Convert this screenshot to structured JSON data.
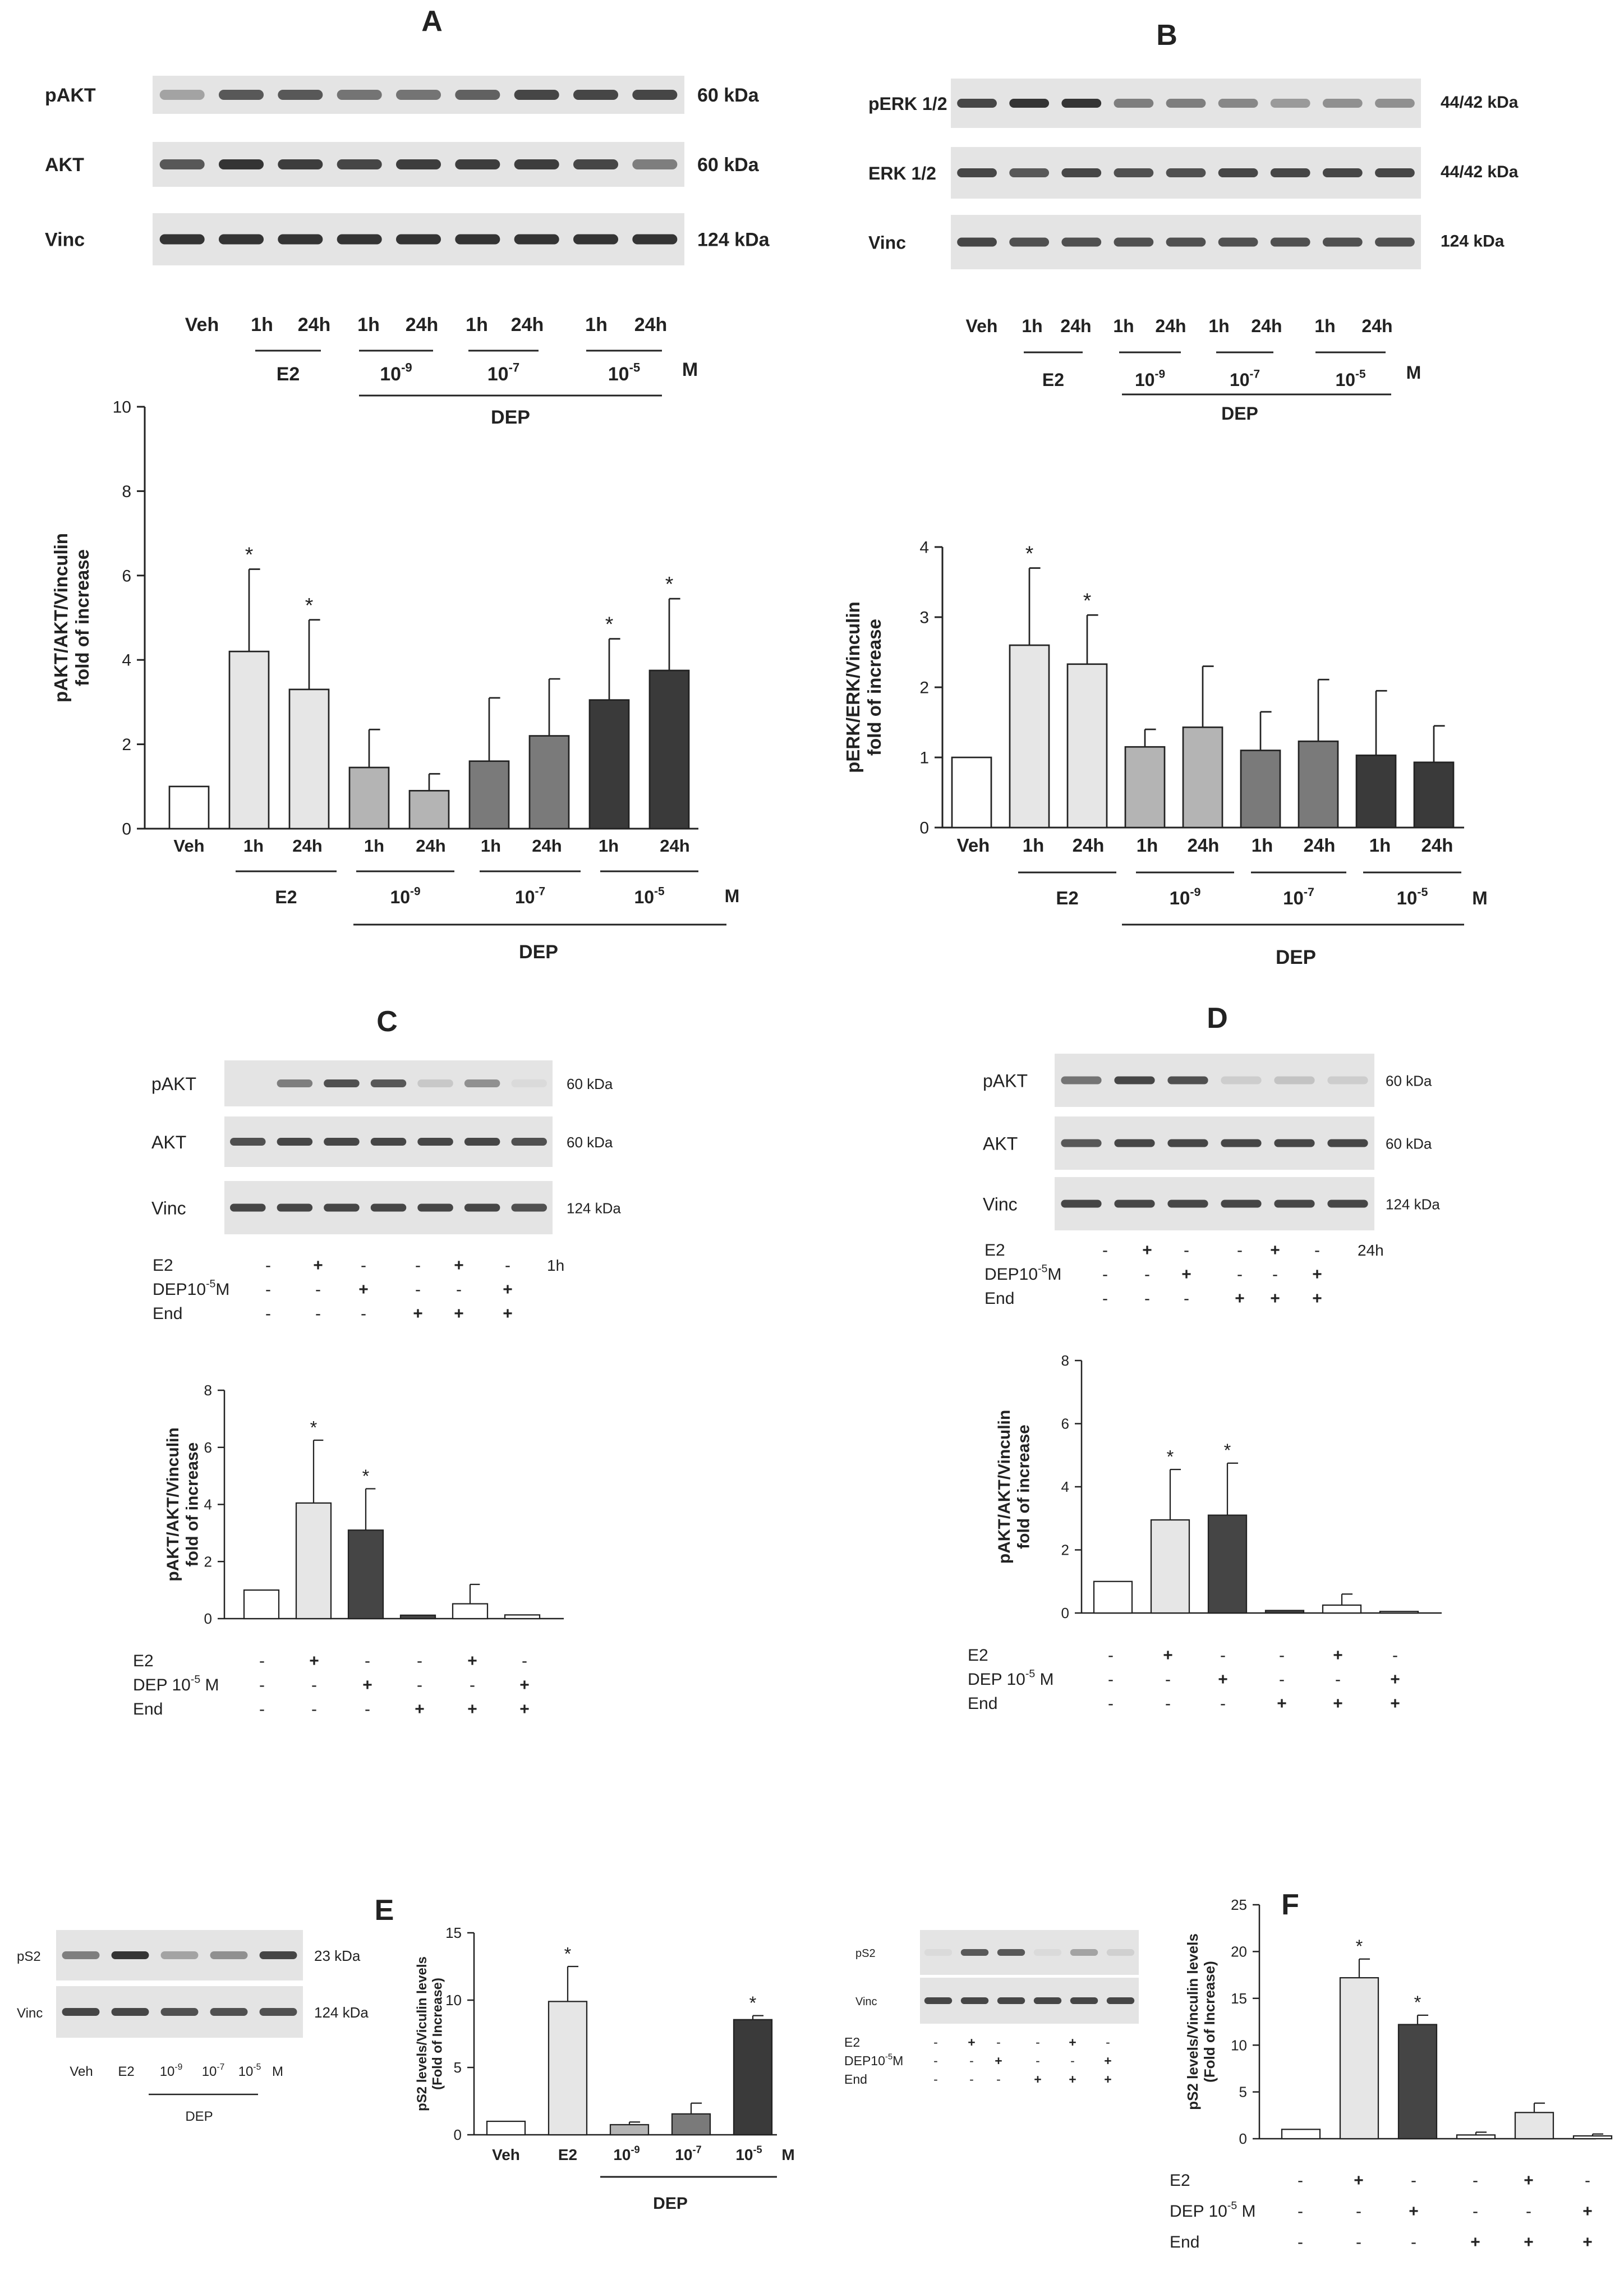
{
  "colors": {
    "veh": "#ffffff",
    "e2": "#e6e6e6",
    "dep9": "#b4b4b4",
    "dep7": "#7a7a7a",
    "dep5": "#3a3a3a",
    "dep5_single": "#454545",
    "blot_bg": "#e4e4e4",
    "band": "#2a2a2a",
    "axis": "#222222"
  },
  "panels": [
    {
      "letter": "A",
      "blot": {
        "rows": [
          {
            "label": "pAKT",
            "kda": "60 kDa",
            "intensity": [
              0.35,
              0.75,
              0.75,
              0.6,
              0.6,
              0.7,
              0.85,
              0.85,
              0.85
            ]
          },
          {
            "label": "AKT",
            "kda": "60 kDa",
            "intensity": [
              0.75,
              0.95,
              0.9,
              0.85,
              0.9,
              0.9,
              0.9,
              0.85,
              0.55
            ]
          },
          {
            "label": "Vinc",
            "kda": "124 kDa",
            "intensity": [
              0.95,
              0.95,
              0.95,
              0.95,
              0.95,
              0.95,
              0.95,
              0.95,
              0.95
            ]
          }
        ],
        "lanes": [
          "Veh",
          "1h",
          "24h",
          "1h",
          "24h",
          "1h",
          "24h",
          "1h",
          "24h"
        ],
        "groups": [
          {
            "label": "E2",
            "exponent": ""
          },
          {
            "label": "10",
            "exponent": "-9"
          },
          {
            "label": "10",
            "exponent": "-7"
          },
          {
            "label": "10",
            "exponent": "-5"
          }
        ],
        "unit": "M",
        "dep_label": "DEP"
      },
      "chart": {
        "ylabel_line1": "pAKT/AKT/Vinculin",
        "ylabel_line2": "fold of increase",
        "ymax": 10,
        "yticks": [
          "0",
          "2",
          "4",
          "6",
          "8",
          "10"
        ],
        "unit": "M",
        "dep_label": "DEP"
      }
    },
    {
      "letter": "B",
      "blot": {
        "rows": [
          {
            "label": "pERK 1/2",
            "kda": "44/42 kDa",
            "intensity": [
              0.85,
              0.95,
              0.95,
              0.55,
              0.55,
              0.5,
              0.4,
              0.45,
              0.45
            ]
          },
          {
            "label": "ERK 1/2",
            "kda": "44/42 kDa",
            "intensity": [
              0.85,
              0.75,
              0.85,
              0.8,
              0.8,
              0.85,
              0.85,
              0.85,
              0.85
            ]
          },
          {
            "label": "Vinc",
            "kda": "124 kDa",
            "intensity": [
              0.85,
              0.8,
              0.8,
              0.8,
              0.8,
              0.8,
              0.8,
              0.8,
              0.8
            ]
          }
        ],
        "lanes": [
          "Veh",
          "1h",
          "24h",
          "1h",
          "24h",
          "1h",
          "24h",
          "1h",
          "24h"
        ],
        "groups": [
          {
            "label": "E2",
            "exponent": ""
          },
          {
            "label": "10",
            "exponent": "-9"
          },
          {
            "label": "10",
            "exponent": "-7"
          },
          {
            "label": "10",
            "exponent": "-5"
          }
        ],
        "unit": "M",
        "dep_label": "DEP"
      },
      "chart": {
        "ylabel_line1": "pERK/ERK/Vinculin",
        "ylabel_line2": "fold of increase",
        "ymax": 4,
        "yticks": [
          "0",
          "1",
          "2",
          "3",
          "4"
        ],
        "unit": "M",
        "dep_label": "DEP"
      }
    },
    {
      "letter": "C",
      "blot": {
        "rows": [
          {
            "label": "pAKT",
            "kda": "60 kDa",
            "intensity": [
              0.0,
              0.55,
              0.8,
              0.75,
              0.15,
              0.45,
              0.05
            ]
          },
          {
            "label": "AKT",
            "kda": "60 kDa",
            "intensity": [
              0.8,
              0.85,
              0.85,
              0.85,
              0.85,
              0.85,
              0.8
            ]
          },
          {
            "label": "Vinc",
            "kda": "124 kDa",
            "intensity": [
              0.85,
              0.85,
              0.85,
              0.85,
              0.85,
              0.85,
              0.8
            ]
          }
        ],
        "time": "1h",
        "treatments": [
          {
            "label": "E2",
            "sup": "",
            "suffix": "",
            "signs": [
              "-",
              "+",
              "-",
              "-",
              "+",
              "-"
            ]
          },
          {
            "label": "DEP10",
            "sup": "-5",
            "suffix": "M",
            "signs": [
              "-",
              "-",
              "+",
              "-",
              "-",
              "+"
            ]
          },
          {
            "label": "End",
            "sup": "",
            "suffix": "",
            "signs": [
              "-",
              "-",
              "-",
              "+",
              "+",
              "+"
            ]
          }
        ]
      },
      "chart": {
        "ylabel_line1": "pAKT/AKT/Vinculin",
        "ylabel_line2": "fold of increase",
        "ymax": 8,
        "yticks": [
          "0",
          "2",
          "4",
          "6",
          "8"
        ],
        "treatments": [
          {
            "label": "E2",
            "sup": "",
            "suffix": "",
            "signs": [
              "-",
              "+",
              "-",
              "-",
              "+",
              "-"
            ]
          },
          {
            "label": "DEP 10",
            "sup": "-5",
            "suffix": " M",
            "signs": [
              "-",
              "-",
              "+",
              "-",
              "-",
              "+"
            ]
          },
          {
            "label": "End",
            "sup": "",
            "suffix": "",
            "signs": [
              "-",
              "-",
              "-",
              "+",
              "+",
              "+"
            ]
          }
        ]
      }
    },
    {
      "letter": "D",
      "blot": {
        "rows": [
          {
            "label": "pAKT",
            "kda": "60 kDa",
            "intensity": [
              0.6,
              0.85,
              0.8,
              0.12,
              0.18,
              0.12
            ]
          },
          {
            "label": "AKT",
            "kda": "60 kDa",
            "intensity": [
              0.75,
              0.85,
              0.85,
              0.85,
              0.85,
              0.85
            ]
          },
          {
            "label": "Vinc",
            "kda": "124 kDa",
            "intensity": [
              0.85,
              0.85,
              0.85,
              0.85,
              0.85,
              0.85
            ]
          }
        ],
        "time": "24h",
        "treatments": [
          {
            "label": "E2",
            "sup": "",
            "suffix": "",
            "signs": [
              "-",
              "+",
              "-",
              "-",
              "+",
              "-"
            ]
          },
          {
            "label": "DEP10",
            "sup": "-5",
            "suffix": "M",
            "signs": [
              "-",
              "-",
              "+",
              "-",
              "-",
              "+"
            ]
          },
          {
            "label": "End",
            "sup": "",
            "suffix": "",
            "signs": [
              "-",
              "-",
              "-",
              "+",
              "+",
              "+"
            ]
          }
        ]
      },
      "chart": {
        "ylabel_line1": "pAKT/AKT/Vinculin",
        "ylabel_line2": "fold of increase",
        "ymax": 8,
        "yticks": [
          "0",
          "2",
          "4",
          "6",
          "8"
        ],
        "treatments": [
          {
            "label": "E2",
            "sup": "",
            "suffix": "",
            "signs": [
              "-",
              "+",
              "-",
              "-",
              "+",
              "-"
            ]
          },
          {
            "label": "DEP 10",
            "sup": "-5",
            "suffix": " M",
            "signs": [
              "-",
              "-",
              "+",
              "-",
              "-",
              "+"
            ]
          },
          {
            "label": "End",
            "sup": "",
            "suffix": "",
            "signs": [
              "-",
              "-",
              "-",
              "+",
              "+",
              "+"
            ]
          }
        ]
      }
    },
    {
      "letter": "E",
      "blot": {
        "rows": [
          {
            "label": "pS2",
            "kda": "23 kDa",
            "intensity": [
              0.55,
              0.95,
              0.35,
              0.45,
              0.85
            ]
          },
          {
            "label": "Vinc",
            "kda": "124 kDa",
            "intensity": [
              0.85,
              0.85,
              0.8,
              0.8,
              0.8
            ]
          }
        ],
        "lanes": [
          {
            "label": "Veh",
            "sup": ""
          },
          {
            "label": "E2",
            "sup": ""
          },
          {
            "label": "10",
            "sup": "-9"
          },
          {
            "label": "10",
            "sup": "-7"
          },
          {
            "label": "10",
            "sup": "-5"
          }
        ],
        "unit": "M",
        "dep_label": "DEP"
      },
      "chart": {
        "ylabel_line1": "pS2 levels/Viculin levels",
        "ylabel_line2": "(Fold of Increase)",
        "ymax": 15,
        "yticks": [
          "0",
          "5",
          "10",
          "15"
        ],
        "xlabels": [
          {
            "label": "Veh",
            "sup": ""
          },
          {
            "label": "E2",
            "sup": ""
          },
          {
            "label": "10",
            "sup": "-9"
          },
          {
            "label": "10",
            "sup": "-7"
          },
          {
            "label": "10",
            "sup": "-5"
          }
        ],
        "unit": "M",
        "dep_label": "DEP"
      }
    },
    {
      "letter": "F",
      "blot": {
        "rows": [
          {
            "label": "pS2",
            "kda": "",
            "intensity": [
              0.05,
              0.75,
              0.75,
              0.05,
              0.35,
              0.1
            ]
          },
          {
            "label": "Vinc",
            "kda": "",
            "intensity": [
              0.85,
              0.85,
              0.85,
              0.85,
              0.85,
              0.85
            ]
          }
        ],
        "treatments": [
          {
            "label": "E2",
            "sup": "",
            "suffix": "",
            "signs": [
              "-",
              "+",
              "-",
              "-",
              "+",
              "-"
            ]
          },
          {
            "label": "DEP10",
            "sup": "-5",
            "suffix": "M",
            "signs": [
              "-",
              "-",
              "+",
              "-",
              "-",
              "+"
            ]
          },
          {
            "label": "End",
            "sup": "",
            "suffix": "",
            "signs": [
              "-",
              "-",
              "-",
              "+",
              "+",
              "+"
            ]
          }
        ]
      },
      "chart": {
        "ylabel_line1": "pS2 levels/Vinculin levels",
        "ylabel_line2": "(Fold of Increase)",
        "ymax": 25,
        "yticks": [
          "0",
          "5",
          "10",
          "15",
          "20",
          "25"
        ],
        "treatments": [
          {
            "label": "E2",
            "sup": "",
            "suffix": "",
            "signs": [
              "-",
              "+",
              "-",
              "-",
              "+",
              "-"
            ]
          },
          {
            "label": "DEP 10",
            "sup": "-5",
            "suffix": " M",
            "signs": [
              "-",
              "-",
              "+",
              "-",
              "-",
              "+"
            ]
          },
          {
            "label": "End",
            "sup": "",
            "suffix": "",
            "signs": [
              "-",
              "-",
              "-",
              "+",
              "+",
              "+"
            ]
          }
        ]
      }
    }
  ],
  "chart_data": [
    {
      "panel": "A",
      "type": "bar",
      "title": "",
      "categories": [
        "Veh",
        "1h",
        "24h",
        "1h",
        "24h",
        "1h",
        "24h",
        "1h",
        "24h"
      ],
      "values": [
        1.0,
        4.2,
        3.3,
        1.45,
        0.9,
        1.6,
        2.2,
        3.05,
        3.75
      ],
      "errors": [
        0,
        1.95,
        1.65,
        0.9,
        0.4,
        1.5,
        1.35,
        1.45,
        1.7
      ],
      "significant": [
        false,
        true,
        true,
        false,
        false,
        false,
        false,
        true,
        true
      ],
      "fill": [
        "veh",
        "e2",
        "e2",
        "dep9",
        "dep9",
        "dep7",
        "dep7",
        "dep5",
        "dep5"
      ],
      "ylabel": "pAKT/AKT/Vinculin fold of increase",
      "ylim": [
        0,
        10
      ]
    },
    {
      "panel": "B",
      "type": "bar",
      "title": "",
      "categories": [
        "Veh",
        "1h",
        "24h",
        "1h",
        "24h",
        "1h",
        "24h",
        "1h",
        "24h"
      ],
      "values": [
        1.0,
        2.6,
        2.33,
        1.15,
        1.43,
        1.1,
        1.23,
        1.03,
        0.93
      ],
      "errors": [
        0,
        1.1,
        0.7,
        0.25,
        0.87,
        0.55,
        0.88,
        0.92,
        0.52
      ],
      "significant": [
        false,
        true,
        true,
        false,
        false,
        false,
        false,
        false,
        false
      ],
      "fill": [
        "veh",
        "e2",
        "e2",
        "dep9",
        "dep9",
        "dep7",
        "dep7",
        "dep5",
        "dep5"
      ],
      "ylabel": "pERK/ERK/Vinculin fold of increase",
      "ylim": [
        0,
        4
      ]
    },
    {
      "panel": "C",
      "type": "bar",
      "title": "",
      "categories": [
        "Veh",
        "E2",
        "DEP",
        "End",
        "E2+End",
        "DEP+End"
      ],
      "values": [
        1.0,
        4.05,
        3.1,
        0.12,
        0.52,
        0.13
      ],
      "errors": [
        0,
        2.2,
        1.45,
        0,
        0.68,
        0
      ],
      "significant": [
        false,
        true,
        true,
        false,
        false,
        false
      ],
      "fill": [
        "veh",
        "e2",
        "dep5_single",
        "dep5_single",
        "veh",
        "veh"
      ],
      "ylabel": "pAKT/AKT/Vinculin fold of increase",
      "ylim": [
        0,
        8
      ]
    },
    {
      "panel": "D",
      "type": "bar",
      "title": "",
      "categories": [
        "Veh",
        "E2",
        "DEP",
        "End",
        "E2+End",
        "DEP+End"
      ],
      "values": [
        1.0,
        2.95,
        3.1,
        0.08,
        0.25,
        0.05
      ],
      "errors": [
        0,
        1.6,
        1.65,
        0,
        0.35,
        0
      ],
      "significant": [
        false,
        true,
        true,
        false,
        false,
        false
      ],
      "fill": [
        "veh",
        "e2",
        "dep5_single",
        "dep5_single",
        "veh",
        "veh"
      ],
      "ylabel": "pAKT/AKT/Vinculin fold of increase",
      "ylim": [
        0,
        8
      ]
    },
    {
      "panel": "E",
      "type": "bar",
      "title": "",
      "categories": [
        "Veh",
        "E2",
        "10^-9",
        "10^-7",
        "10^-5"
      ],
      "values": [
        1.0,
        9.9,
        0.75,
        1.55,
        8.55
      ],
      "errors": [
        0,
        2.6,
        0.2,
        0.8,
        0.3
      ],
      "significant": [
        false,
        true,
        false,
        false,
        true
      ],
      "fill": [
        "veh",
        "e2",
        "dep9",
        "dep7",
        "dep5"
      ],
      "ylabel": "pS2 levels/Viculin levels (Fold of Increase)",
      "ylim": [
        0,
        15
      ]
    },
    {
      "panel": "F",
      "type": "bar",
      "title": "",
      "categories": [
        "Veh",
        "E2",
        "DEP",
        "End",
        "E2+End",
        "DEP+End"
      ],
      "values": [
        1.0,
        17.2,
        12.2,
        0.4,
        2.8,
        0.3
      ],
      "errors": [
        0,
        2.0,
        1.0,
        0.3,
        1.0,
        0.2
      ],
      "significant": [
        false,
        true,
        true,
        false,
        false,
        false
      ],
      "fill": [
        "veh",
        "e2",
        "dep5_single",
        "veh",
        "e2",
        "veh"
      ],
      "ylabel": "pS2 levels/Vinculin levels (Fold of Increase)",
      "ylim": [
        0,
        25
      ]
    }
  ]
}
